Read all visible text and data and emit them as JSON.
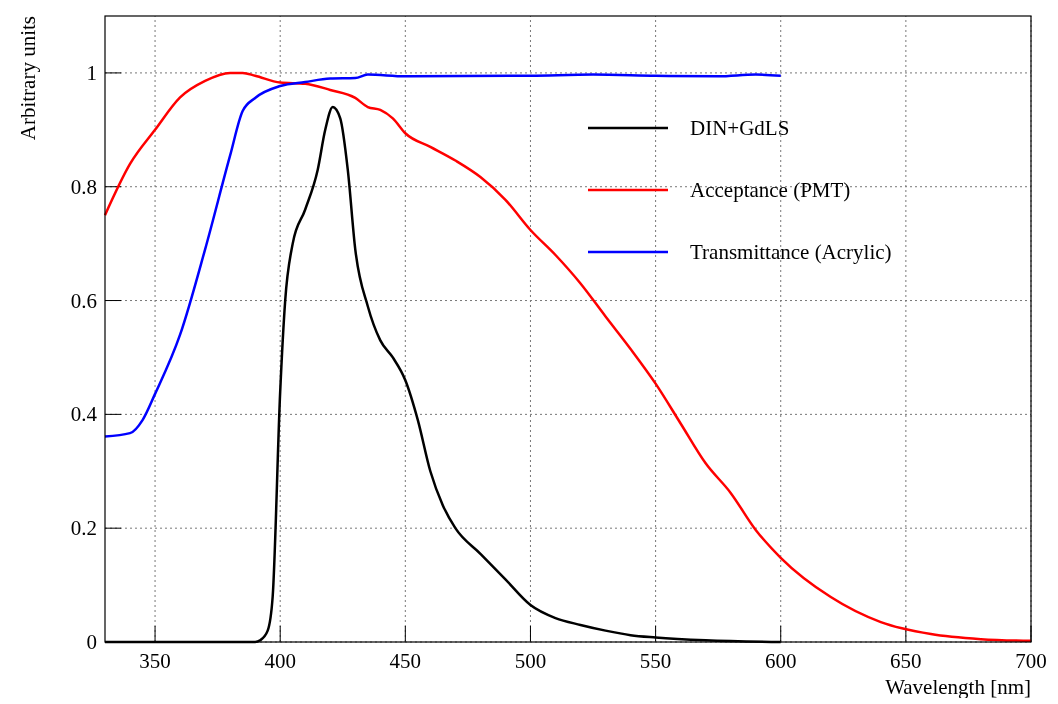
{
  "chart_data": {
    "type": "line",
    "xlabel": "Wavelength [nm]",
    "ylabel": "Arbitrary units",
    "xlim": [
      330,
      700
    ],
    "ylim": [
      0,
      1.1
    ],
    "xticks": [
      350,
      400,
      450,
      500,
      550,
      600,
      650,
      700
    ],
    "yticks": [
      0,
      0.2,
      0.4,
      0.6,
      0.8,
      1
    ],
    "grid": true,
    "legend": "top right",
    "line_style": "solid",
    "marker": "none",
    "series": [
      {
        "name": "DIN+GdLS",
        "color": "#000000",
        "x": [
          330,
          350,
          370,
          390,
          392,
          395,
          397,
          400,
          402,
          405,
          410,
          415,
          418,
          421,
          424,
          427,
          430,
          435,
          440,
          445,
          450,
          455,
          460,
          465,
          470,
          480,
          490,
          500,
          510,
          520,
          530,
          540,
          550,
          570,
          600
        ],
        "values": [
          0,
          0,
          0,
          0,
          0.003,
          0.02,
          0.08,
          0.44,
          0.6,
          0.7,
          0.76,
          0.83,
          0.9,
          0.94,
          0.92,
          0.83,
          0.69,
          0.59,
          0.53,
          0.5,
          0.46,
          0.39,
          0.3,
          0.24,
          0.2,
          0.155,
          0.11,
          0.065,
          0.042,
          0.03,
          0.02,
          0.012,
          0.008,
          0.003,
          0
        ]
      },
      {
        "name": "Acceptance (PMT)",
        "color": "#ff0000",
        "x": [
          330,
          340,
          350,
          360,
          370,
          380,
          385,
          390,
          400,
          410,
          420,
          430,
          435,
          440,
          445,
          450,
          460,
          470,
          480,
          490,
          500,
          510,
          520,
          530,
          540,
          550,
          560,
          570,
          580,
          590,
          600,
          620,
          640,
          660,
          680,
          700
        ],
        "values": [
          0.75,
          0.84,
          0.9,
          0.957,
          0.986,
          1,
          1,
          0.995,
          0.983,
          0.981,
          0.97,
          0.956,
          0.94,
          0.935,
          0.92,
          0.894,
          0.87,
          0.846,
          0.817,
          0.777,
          0.724,
          0.68,
          0.63,
          0.572,
          0.515,
          0.454,
          0.384,
          0.314,
          0.262,
          0.197,
          0.148,
          0.079,
          0.035,
          0.014,
          0.005,
          0.002
        ]
      },
      {
        "name": "Transmittance (Acrylic)",
        "color": "#0000ff",
        "x": [
          330,
          340,
          345,
          350,
          360,
          370,
          380,
          385,
          390,
          400,
          410,
          420,
          430,
          435,
          450,
          500,
          525,
          550,
          575,
          590,
          600
        ],
        "values": [
          0.361,
          0.367,
          0.39,
          0.436,
          0.54,
          0.69,
          0.855,
          0.933,
          0.956,
          0.977,
          0.984,
          0.99,
          0.991,
          0.997,
          0.994,
          0.995,
          0.997,
          0.995,
          0.994,
          0.997,
          0.995
        ]
      }
    ]
  }
}
